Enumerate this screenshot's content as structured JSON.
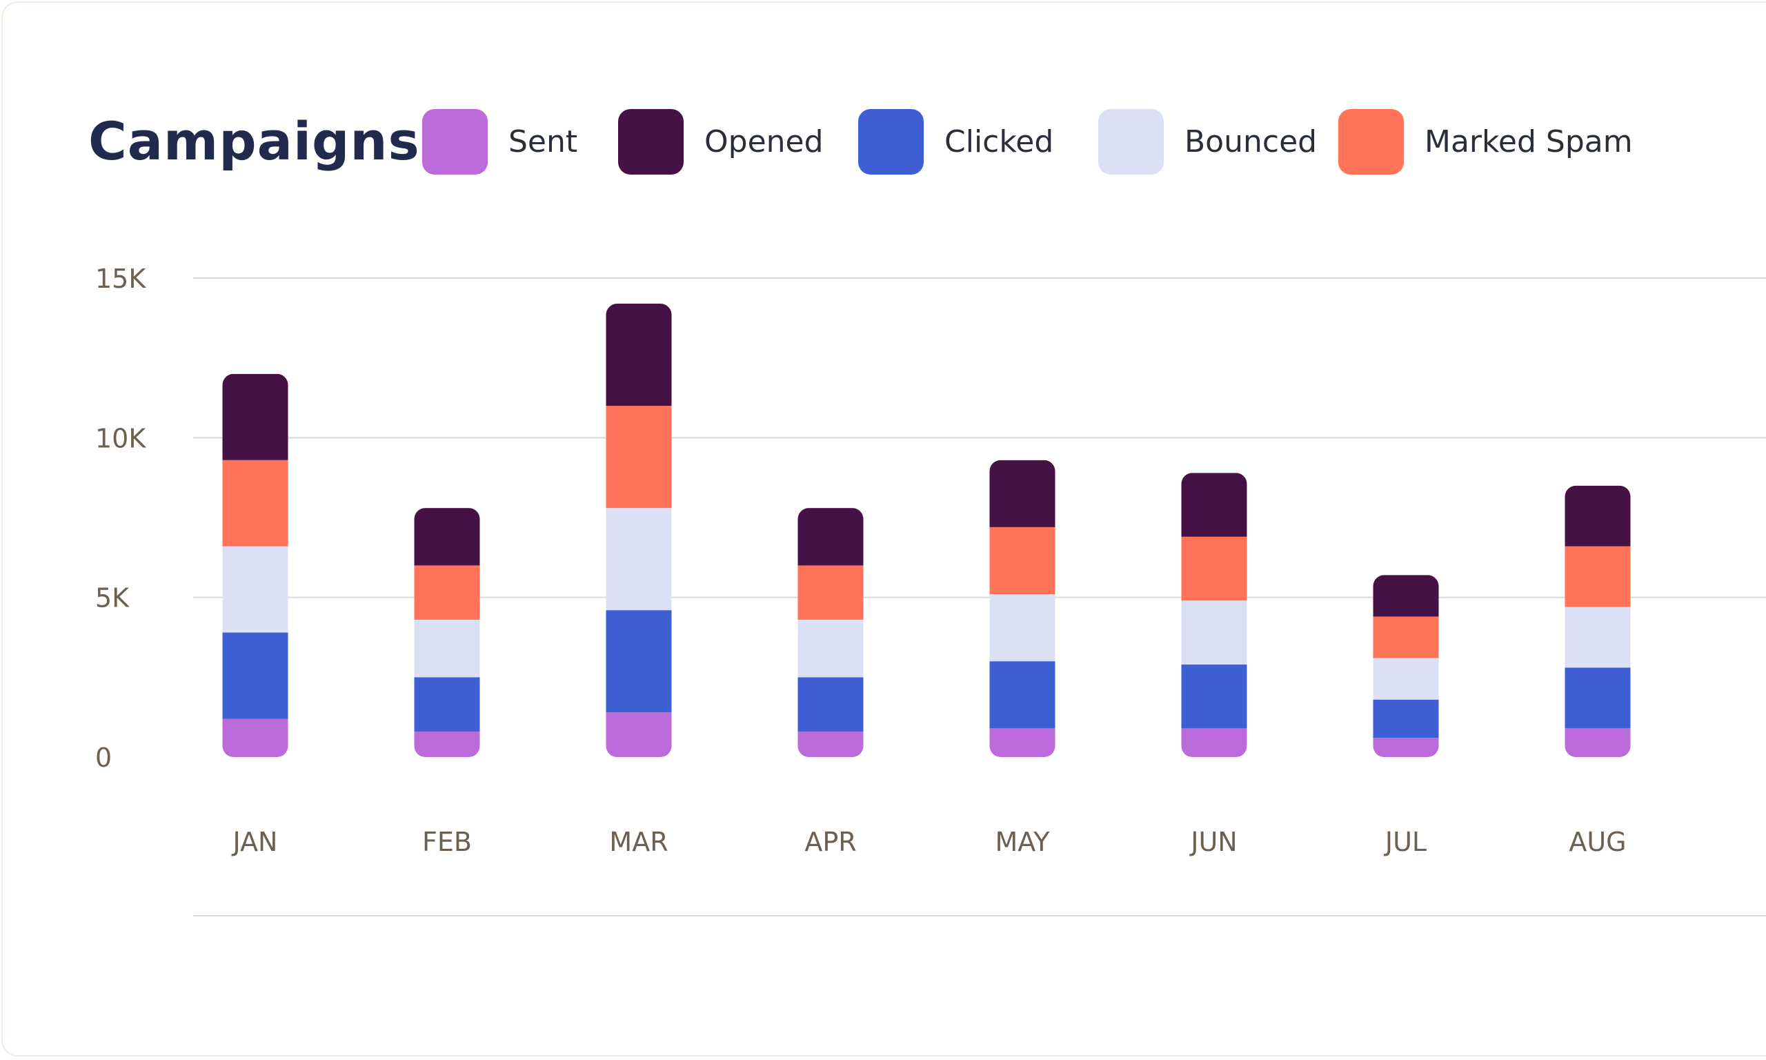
{
  "chart_data": {
    "type": "bar",
    "stacked": true,
    "title": "Campaigns",
    "categories": [
      "JAN",
      "FEB",
      "MAR",
      "APR",
      "MAY",
      "JUN",
      "JUL",
      "AUG"
    ],
    "ylim": [
      0,
      15000
    ],
    "yticks": [
      0,
      5000,
      10000,
      15000
    ],
    "ytick_labels": [
      "0",
      "5K",
      "10K",
      "15K"
    ],
    "grid": true,
    "legend_position": "top",
    "series": [
      {
        "name": "Sent",
        "color": "#bb6bd9",
        "values": [
          1200,
          800,
          1400,
          800,
          900,
          900,
          600,
          900
        ]
      },
      {
        "name": "Clicked",
        "color": "#3d5fd3",
        "values": [
          2700,
          1700,
          3200,
          1700,
          2100,
          2000,
          1200,
          1900
        ]
      },
      {
        "name": "Bounced",
        "color": "#dbe0f5",
        "values": [
          2700,
          1800,
          3200,
          1800,
          2100,
          2000,
          1300,
          1900
        ]
      },
      {
        "name": "Marked Spam",
        "color": "#ff7359",
        "values": [
          2700,
          1700,
          3200,
          1700,
          2100,
          2000,
          1300,
          1900
        ]
      },
      {
        "name": "Opened",
        "color": "#461145",
        "values": [
          2700,
          1800,
          3200,
          1800,
          2100,
          2000,
          1300,
          1900
        ]
      }
    ],
    "legend_order": [
      "Sent",
      "Opened",
      "Clicked",
      "Bounced",
      "Marked Spam"
    ]
  },
  "colors": {
    "title": "#1f2a4d",
    "gridline": "#d9d9d9",
    "axis_text": "#6b6052",
    "card_border": "#f7ebe0"
  }
}
